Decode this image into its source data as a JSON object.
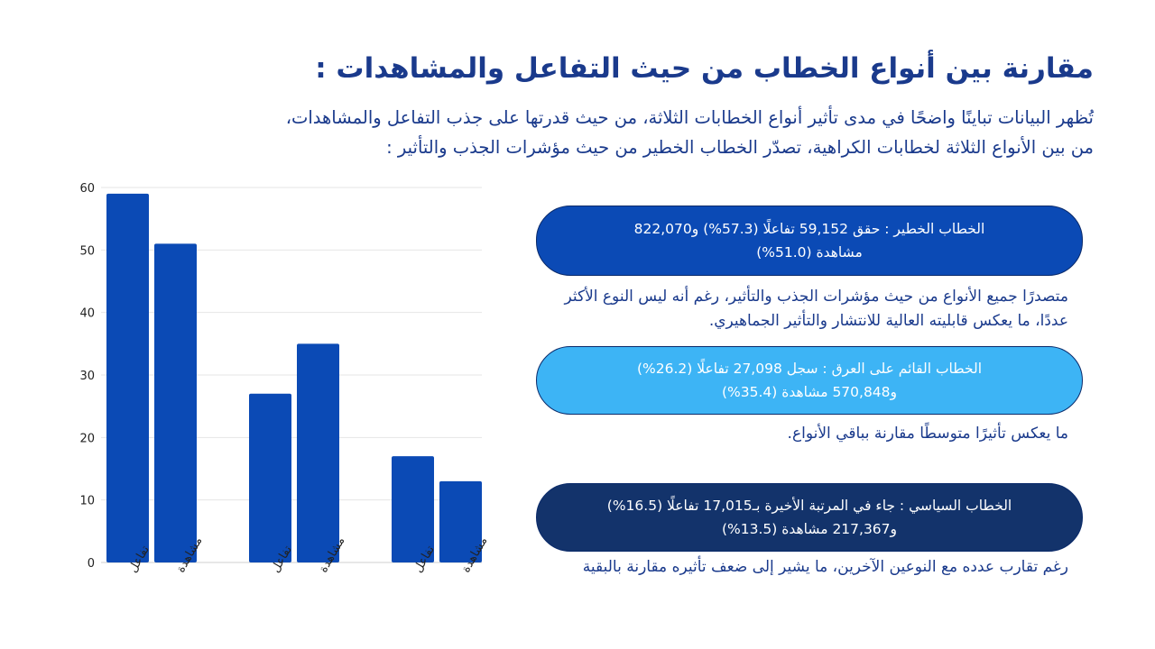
{
  "title": "مقارنة بين أنواع الخطاب من حيث التفاعل والمشاهدات :",
  "intro": {
    "line1": "تُظهر البيانات تباينًا واضحًا في مدى تأثير أنواع الخطابات الثلاثة، من حيث قدرتها على جذب التفاعل والمشاهدات،",
    "line2": "من بين الأنواع الثلاثة لخطابات الكراهية، تصدّر الخطاب الخطير من حيث مؤشرات الجذب والتأثير :"
  },
  "cards": [
    {
      "pill_line1": "الخطاب الخطير : حقق 59,152 تفاعلًا (57.3%) و822,070",
      "pill_line2": "مشاهدة (51.0%)",
      "desc": "متصدرًا جميع الأنواع من حيث مؤشرات الجذب والتأثير، رغم أنه ليس النوع الأكثر عددًا، ما يعكس قابليته العالية للانتشار والتأثير الجماهيري.",
      "color": "#0b4ab5"
    },
    {
      "pill_line1": "الخطاب القائم على العرق : سجل 27,098 تفاعلًا (26.2%)",
      "pill_line2": "و570,848 مشاهدة (35.4%)",
      "desc": "ما يعكس تأثيرًا متوسطًا مقارنة بباقي الأنواع.",
      "color": "#3db4f5"
    },
    {
      "pill_line1": "الخطاب السياسي : جاء في المرتبة الأخيرة بـ17,015 تفاعلًا (16.5%)",
      "pill_line2": "و217,367 مشاهدة (13.5%)",
      "desc": "رغم تقارب عدده مع النوعين الآخرين، ما يشير إلى ضعف تأثيره مقارنة بالبقية",
      "color": "#13336b"
    }
  ],
  "chart_data": {
    "type": "bar",
    "categories": [
      "تفاعل",
      "مشاهدة",
      "تفاعل",
      "مشاهدة",
      "تفاعل",
      "مشاهدة"
    ],
    "values": [
      59,
      51,
      27,
      35,
      17,
      13
    ],
    "groups": [
      2,
      2,
      2
    ],
    "title": "",
    "xlabel": "",
    "ylabel": "",
    "ylim": [
      0,
      60
    ],
    "yticks": [
      0,
      10,
      20,
      30,
      40,
      50,
      60
    ],
    "grid": true,
    "legend": "none",
    "bar_color": "#0b4ab5",
    "grid_color": "#e6e6e6"
  }
}
